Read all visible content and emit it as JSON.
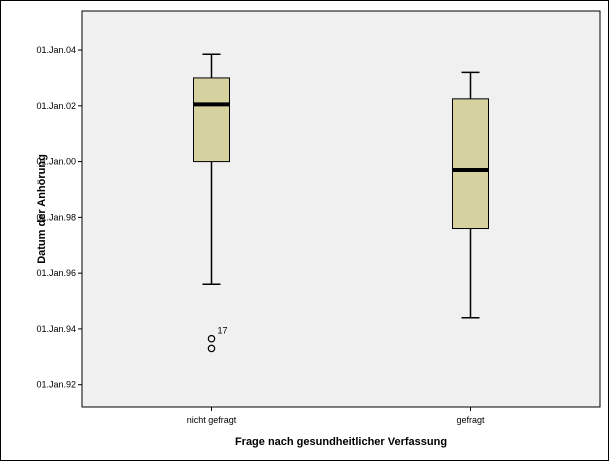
{
  "chart_data": {
    "type": "boxplot",
    "title": "",
    "xlabel": "Frage nach gesundheitlicher Verfassung",
    "ylabel": "Datum der Anhörung",
    "categories": [
      "nicht gefragt",
      "gefragt"
    ],
    "y_tick_values": [
      1992,
      1994,
      1996,
      1998,
      2000,
      2002,
      2004
    ],
    "y_tick_labels": [
      "01.Jan.92",
      "01.Jan.94",
      "01.Jan.96",
      "01.Jan.98",
      "01.Jan.00",
      "01.Jan.02",
      "01.Jan.04"
    ],
    "ylim": [
      1991.2,
      2005.4
    ],
    "grid": false,
    "plot_background": "#f0f0f0",
    "box_fill": "#d6d2a0",
    "boxes": [
      {
        "category": "nicht gefragt",
        "whisker_low": 1995.6,
        "q1": 2000.0,
        "median": 2002.05,
        "q3": 2003.0,
        "whisker_high": 2003.85
      },
      {
        "category": "gefragt",
        "whisker_low": 1994.4,
        "q1": 1997.6,
        "median": 1999.7,
        "q3": 2002.25,
        "whisker_high": 2003.2
      }
    ],
    "outliers": [
      {
        "category": "nicht gefragt",
        "value": 1993.65,
        "label": "17"
      },
      {
        "category": "nicht gefragt",
        "value": 1993.3,
        "label": ""
      }
    ]
  }
}
